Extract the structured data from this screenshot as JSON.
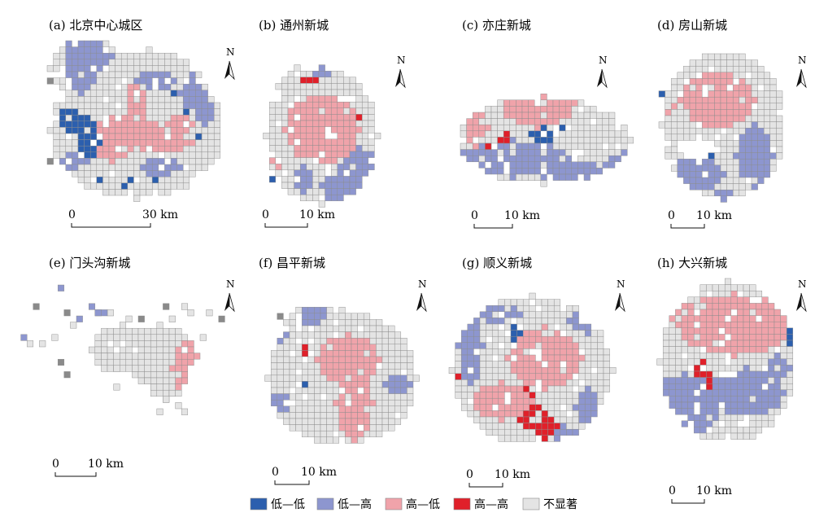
{
  "figure": {
    "panels": [
      {
        "id": "a",
        "title": "(a) 北京中心城区",
        "scale": {
          "start": "0",
          "end": "30 km"
        }
      },
      {
        "id": "b",
        "title": "(b) 通州新城",
        "scale": {
          "start": "0",
          "end": "10 km"
        }
      },
      {
        "id": "c",
        "title": "(c) 亦庄新城",
        "scale": {
          "start": "0",
          "end": "10 km"
        }
      },
      {
        "id": "d",
        "title": "(d) 房山新城",
        "scale": {
          "start": "0",
          "end": "10 km"
        }
      },
      {
        "id": "e",
        "title": "(e) 门头沟新城",
        "scale": {
          "start": "0",
          "end": "10 km"
        }
      },
      {
        "id": "f",
        "title": "(f) 昌平新城",
        "scale": {
          "start": "0",
          "end": "10 km"
        }
      },
      {
        "id": "g",
        "title": "(g) 顺义新城",
        "scale": {
          "start": "0",
          "end": "10 km"
        }
      },
      {
        "id": "h",
        "title": "(h) 大兴新城",
        "scale": {
          "start": "0",
          "end": "10 km"
        }
      }
    ],
    "north_label": "N",
    "legend": [
      {
        "label": "低—低",
        "color": "#2c5fae"
      },
      {
        "label": "低—高",
        "color": "#8d96cf"
      },
      {
        "label": "高—低",
        "color": "#f0a3aa"
      },
      {
        "label": "高—高",
        "color": "#e0202a"
      },
      {
        "label": "不显著",
        "color": "#e4e4e4"
      }
    ]
  }
}
